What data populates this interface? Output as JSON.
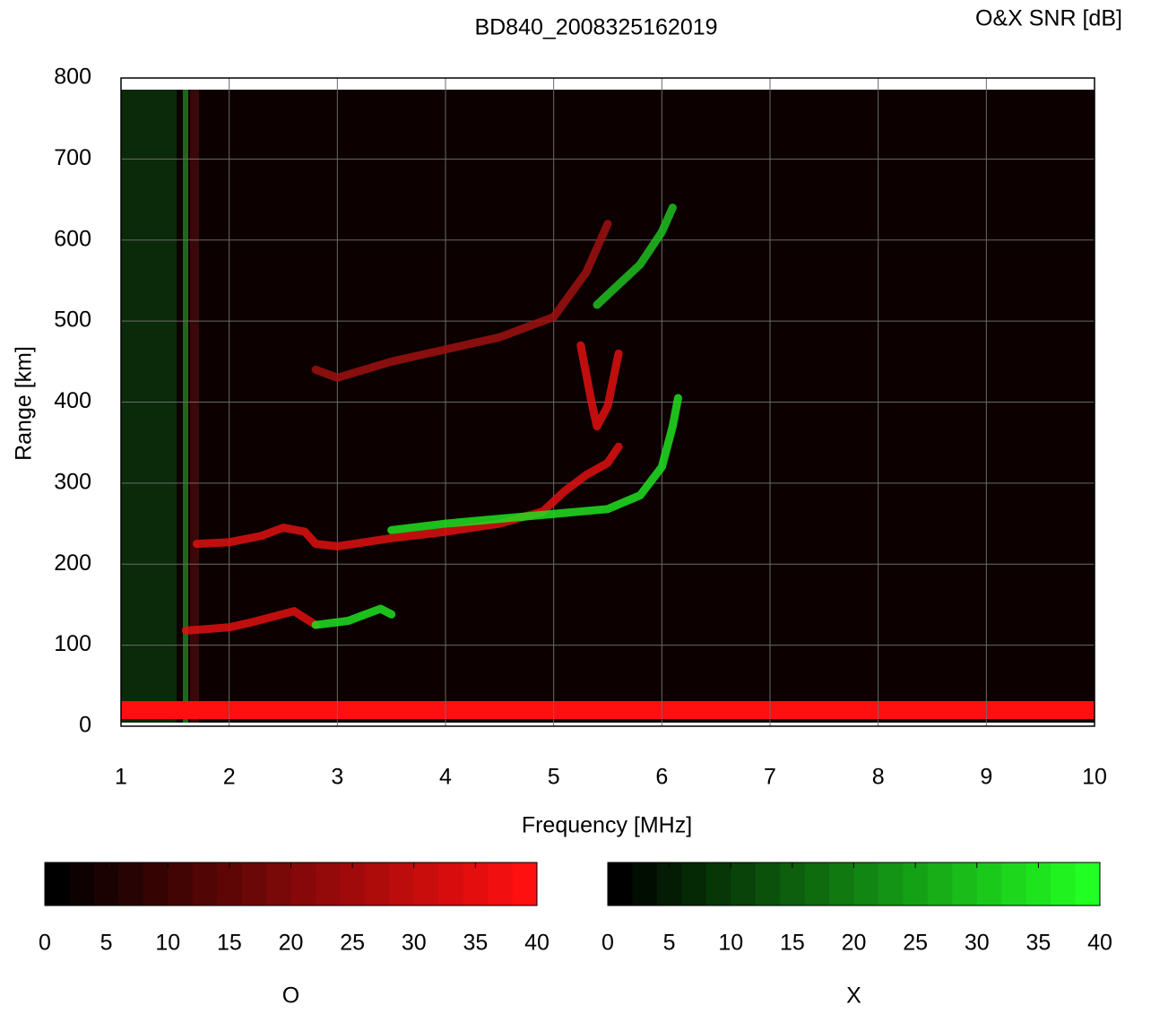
{
  "chart_data": {
    "type": "line",
    "title": "BD840_2008325162019",
    "subtitle": "O&X SNR [dB]",
    "x_label": "Frequency [MHz]",
    "y_label": "Range [km]",
    "xlim": [
      1,
      10
    ],
    "xticks": [
      1,
      2,
      3,
      4,
      5,
      6,
      7,
      8,
      9,
      10
    ],
    "ylim": [
      0,
      800
    ],
    "yticks": [
      0,
      100,
      200,
      300,
      400,
      500,
      600,
      700,
      800
    ],
    "grid": true,
    "series": [
      {
        "color": "#e01010",
        "x": [
          1.6,
          1.8,
          2,
          2.2,
          2.4,
          2.6,
          2.8
        ],
        "values": [
          118,
          120,
          122,
          128,
          135,
          142,
          125
        ]
      },
      {
        "color": "#e01010",
        "x": [
          1.7,
          2,
          2.3,
          2.5,
          2.7,
          2.8,
          3,
          3.5,
          4,
          4.5,
          4.9,
          5.1,
          5.3,
          5.5,
          5.6
        ],
        "values": [
          225,
          227,
          235,
          245,
          240,
          225,
          222,
          232,
          240,
          250,
          265,
          290,
          310,
          325,
          345
        ]
      },
      {
        "color": "#a01010",
        "x": [
          2.8,
          3,
          3.5,
          4,
          4.5,
          5,
          5.3,
          5.5
        ],
        "values": [
          440,
          430,
          450,
          465,
          480,
          505,
          560,
          620
        ]
      },
      {
        "color": "#e01010",
        "x": [
          5.25,
          5.35,
          5.4,
          5.5,
          5.6
        ],
        "values": [
          470,
          400,
          370,
          395,
          460
        ]
      },
      {
        "color": "#20e020",
        "x": [
          2.8,
          3.1,
          3.4,
          3.5
        ],
        "values": [
          125,
          130,
          145,
          138
        ]
      },
      {
        "color": "#20e020",
        "x": [
          3.5,
          4,
          4.5,
          5,
          5.5,
          5.8,
          6,
          6.1,
          6.15
        ],
        "values": [
          242,
          250,
          256,
          262,
          268,
          285,
          320,
          370,
          405
        ]
      },
      {
        "color": "#20c020",
        "x": [
          5.4,
          5.6,
          5.8,
          6,
          6.1
        ],
        "values": [
          520,
          545,
          570,
          610,
          640
        ]
      }
    ],
    "colorbars": [
      {
        "label": "O",
        "cmap": [
          "#000000",
          "#ff1010"
        ],
        "lim": [
          0,
          40
        ],
        "ticks": [
          0,
          5,
          10,
          15,
          20,
          25,
          30,
          35,
          40
        ]
      },
      {
        "label": "X",
        "cmap": [
          "#000000",
          "#22ff22"
        ],
        "lim": [
          0,
          40
        ],
        "ticks": [
          0,
          5,
          10,
          15,
          20,
          25,
          30,
          35,
          40
        ]
      }
    ]
  }
}
